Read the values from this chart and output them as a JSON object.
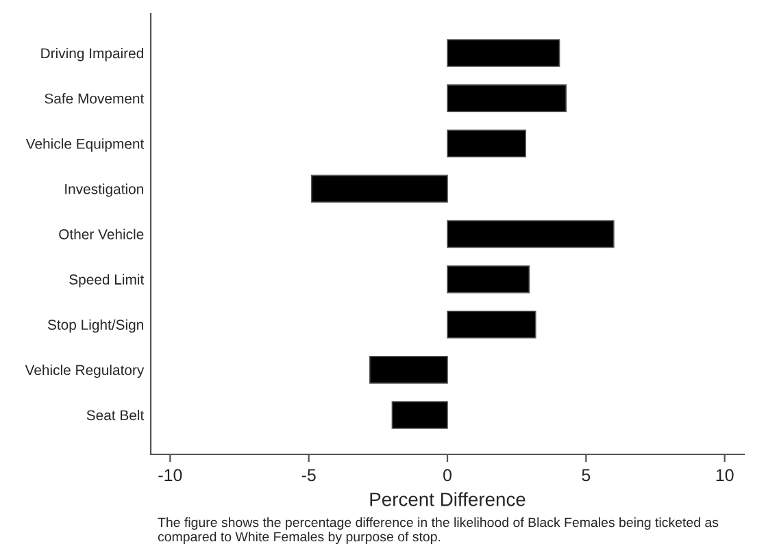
{
  "chart_data": {
    "type": "bar",
    "orientation": "horizontal",
    "xlabel": "Percent Difference",
    "categories": [
      "Driving Impaired",
      "Safe Movement",
      "Vehicle Equipment",
      "Investigation",
      "Other Vehicle",
      "Speed Limit",
      "Stop Light/Sign",
      "Vehicle Regulatory",
      "Seat Belt"
    ],
    "values": [
      4.04,
      4.28,
      2.82,
      -4.9,
      6.0,
      2.95,
      3.18,
      -2.8,
      -1.99
    ],
    "color": "#000000",
    "xlim": [
      -10.7,
      10.7
    ],
    "xticks": [
      -10,
      -5,
      0,
      5,
      10
    ],
    "grid": false,
    "legend": false,
    "annotations": [
      "The figure shows the percentage difference in the likelihood of Black Females being ticketed as compared to White Females by purpose of stop."
    ]
  }
}
